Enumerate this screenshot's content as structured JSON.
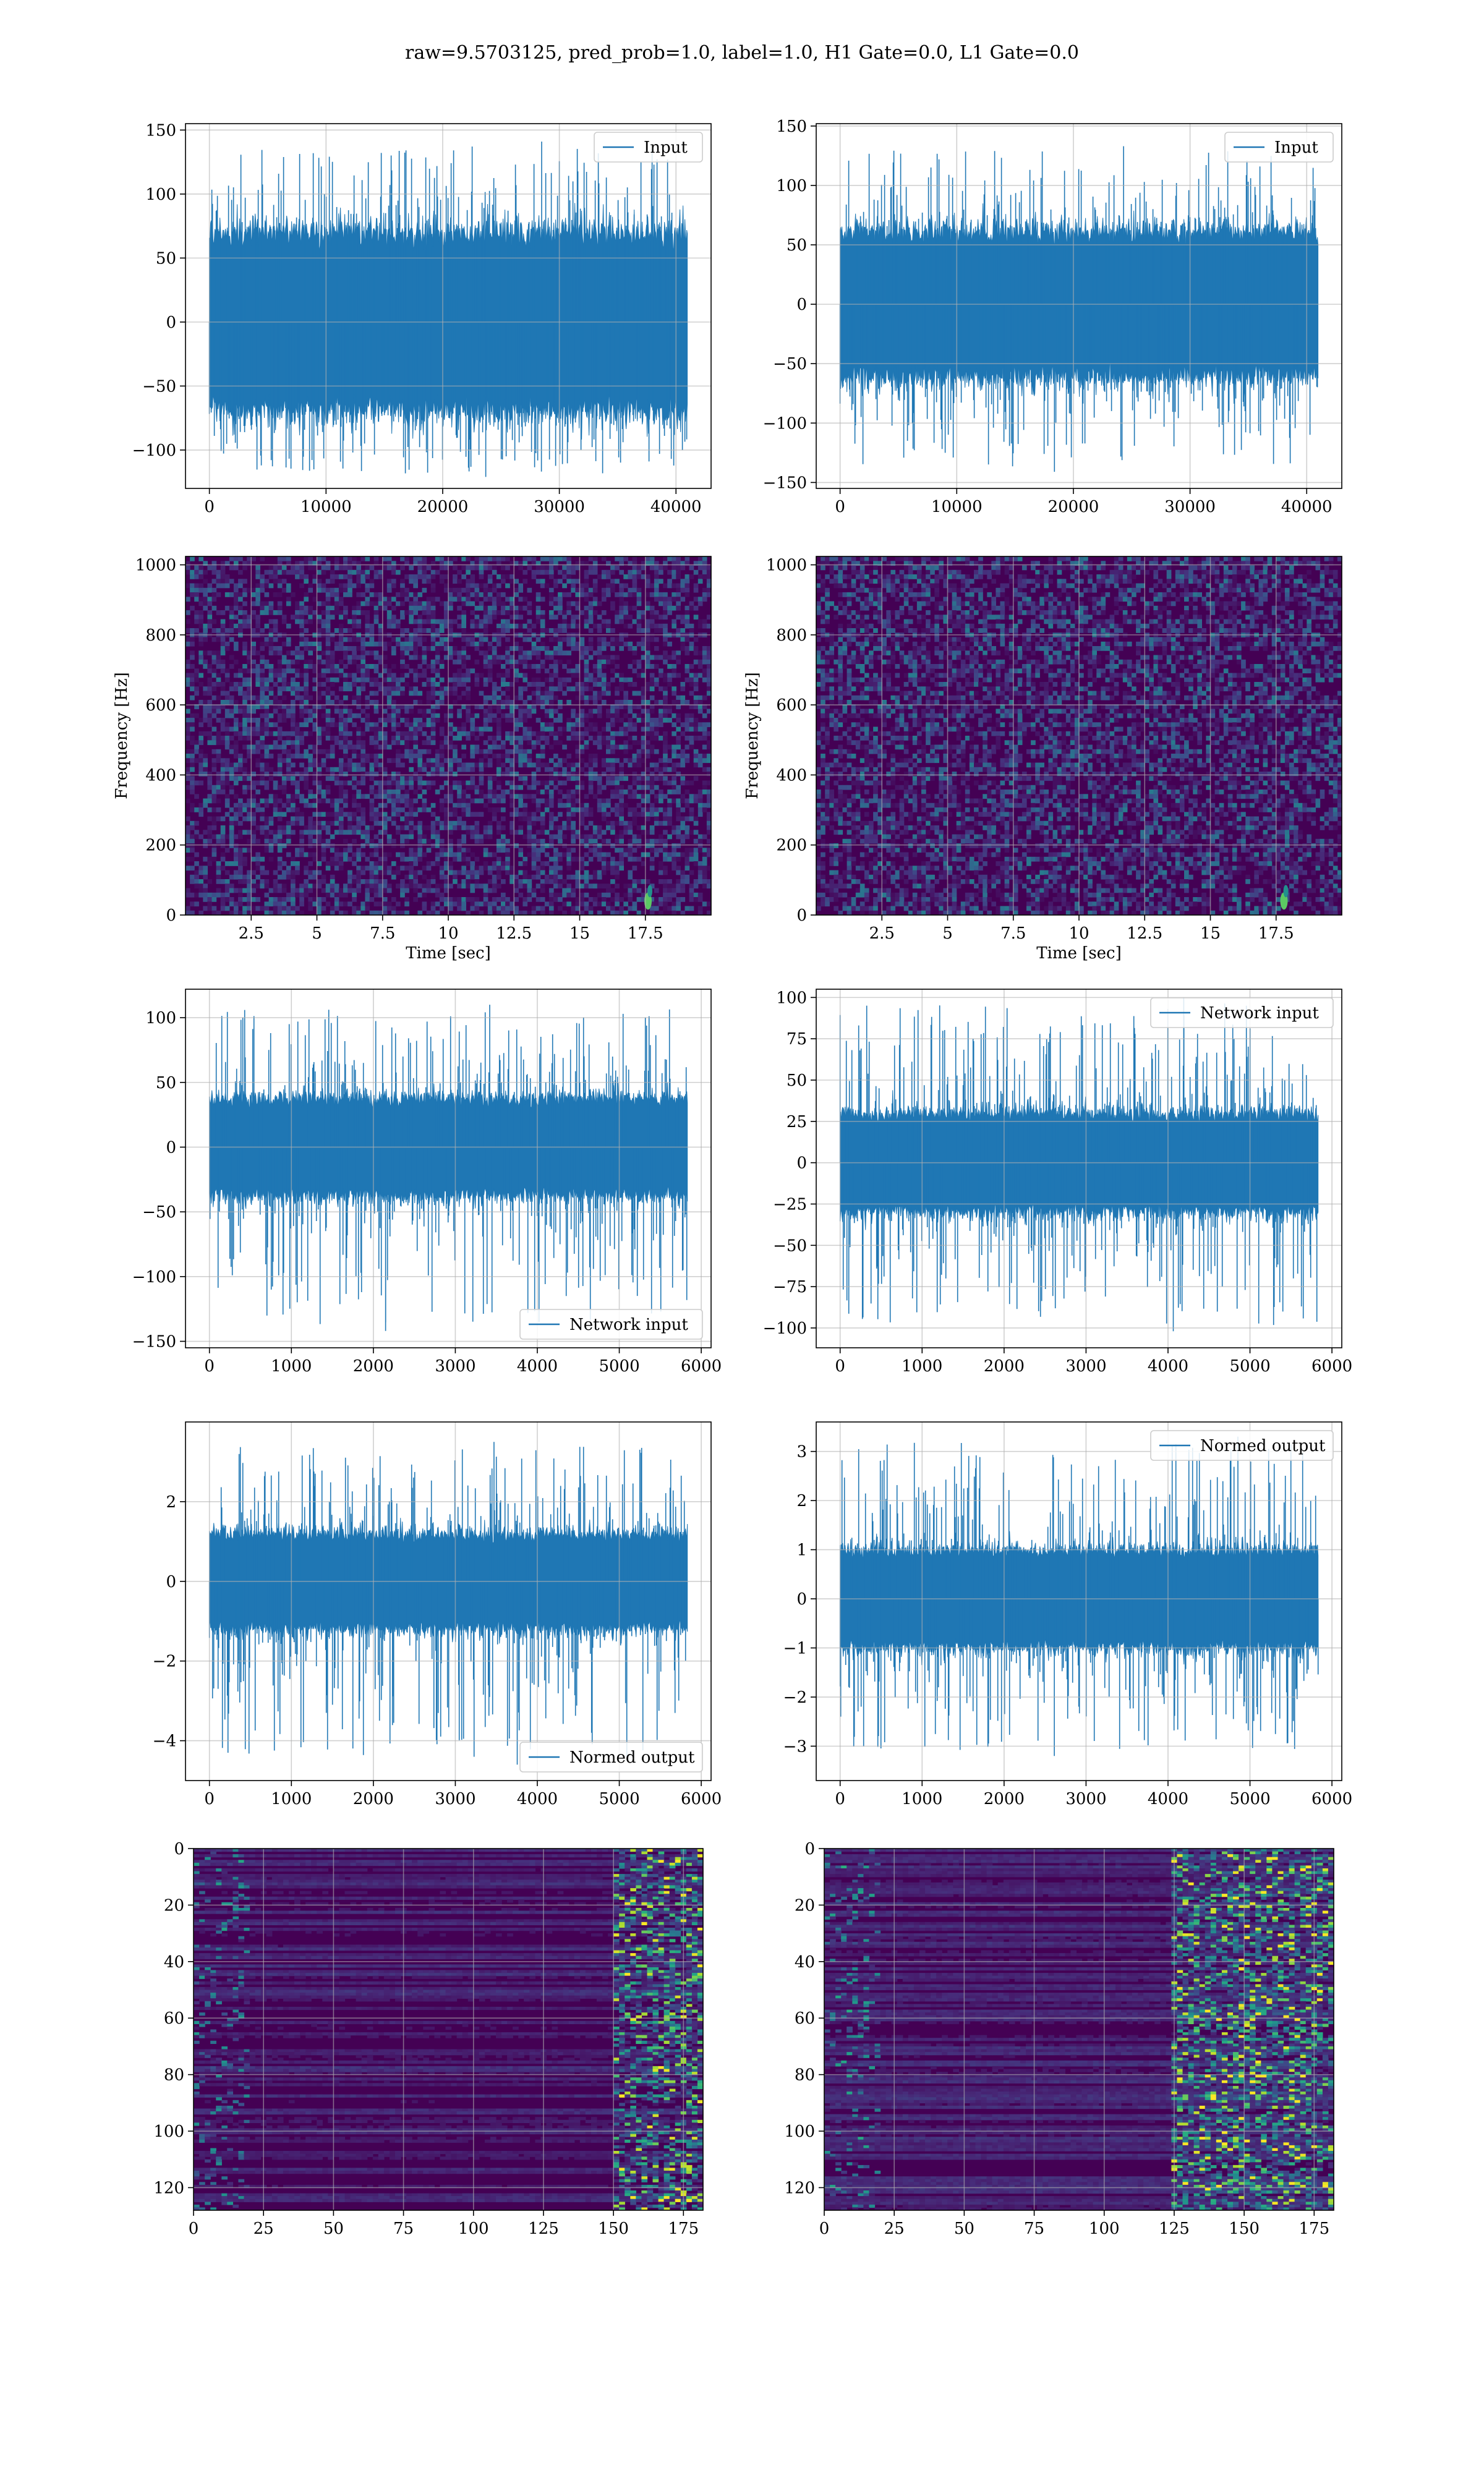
{
  "figure": {
    "title": "raw=9.5703125, pred_prob=1.0, label=1.0, H1 Gate=0.0, L1 Gate=0.0"
  },
  "colors": {
    "line": "#1f77b4",
    "grid": "#b0b0b0",
    "viridis_dark": "#440154",
    "viridis_mid": "#21918c",
    "viridis_bright": "#fde725"
  },
  "chart_data": [
    {
      "id": "p1",
      "type": "line",
      "title": "",
      "xlabel": "",
      "ylabel": "",
      "legend": "Input",
      "legend_loc": "upper right",
      "xlim": [
        -2048,
        43008
      ],
      "ylim": [
        -130,
        155
      ],
      "xticks": [
        0,
        10000,
        20000,
        30000,
        40000
      ],
      "yticks": [
        -100,
        -50,
        0,
        50,
        100,
        150
      ],
      "signal": {
        "n": 40960,
        "x_start": 0,
        "x_end": 40960,
        "core_amplitude": 70,
        "max": 141,
        "min": -121
      },
      "grid": true
    },
    {
      "id": "p2",
      "type": "line",
      "title": "",
      "xlabel": "",
      "ylabel": "",
      "legend": "Input",
      "legend_loc": "upper right",
      "xlim": [
        -2048,
        43008
      ],
      "ylim": [
        -155,
        152
      ],
      "xticks": [
        0,
        10000,
        20000,
        30000,
        40000
      ],
      "yticks": [
        -150,
        -100,
        -50,
        0,
        50,
        100,
        150
      ],
      "signal": {
        "n": 40960,
        "x_start": 0,
        "x_end": 40960,
        "core_amplitude": 62,
        "max": 133,
        "min": -141
      },
      "grid": true
    },
    {
      "id": "p3",
      "type": "heatmap",
      "title": "",
      "xlabel": "Time [sec]",
      "ylabel": "Frequency [Hz]",
      "xlim": [
        0,
        20
      ],
      "ylim": [
        0,
        1024
      ],
      "xticks": [
        2.5,
        5.0,
        7.5,
        10.0,
        12.5,
        15.0,
        17.5
      ],
      "yticks": [
        0,
        200,
        400,
        600,
        800,
        1000
      ],
      "colormap": "viridis",
      "hot_spot": {
        "time": 17.6,
        "freq": 40
      },
      "grid": true
    },
    {
      "id": "p4",
      "type": "heatmap",
      "title": "",
      "xlabel": "Time [sec]",
      "ylabel": "Frequency [Hz]",
      "xlim": [
        0,
        20
      ],
      "ylim": [
        0,
        1024
      ],
      "xticks": [
        2.5,
        5.0,
        7.5,
        10.0,
        12.5,
        15.0,
        17.5
      ],
      "yticks": [
        0,
        200,
        400,
        600,
        800,
        1000
      ],
      "colormap": "viridis",
      "hot_spot": {
        "time": 17.8,
        "freq": 40
      },
      "grid": true
    },
    {
      "id": "p5",
      "type": "line",
      "title": "",
      "xlabel": "",
      "ylabel": "",
      "legend": "Network input",
      "legend_loc": "lower right",
      "xlim": [
        -292,
        6120
      ],
      "ylim": [
        -155,
        122
      ],
      "xticks": [
        0,
        1000,
        2000,
        3000,
        4000,
        5000,
        6000
      ],
      "yticks": [
        -150,
        -100,
        -50,
        0,
        50,
        100
      ],
      "signal": {
        "n": 5832,
        "x_start": 0,
        "x_end": 5832,
        "core_amplitude": 38,
        "max": 110,
        "min": -142
      },
      "grid": true
    },
    {
      "id": "p6",
      "type": "line",
      "title": "",
      "xlabel": "",
      "ylabel": "",
      "legend": "Network input",
      "legend_loc": "upper right",
      "xlim": [
        -292,
        6120
      ],
      "ylim": [
        -112,
        105
      ],
      "xticks": [
        0,
        1000,
        2000,
        3000,
        4000,
        5000,
        6000
      ],
      "yticks": [
        -100,
        -75,
        -50,
        -25,
        0,
        25,
        50,
        75,
        100
      ],
      "signal": {
        "n": 5832,
        "x_start": 0,
        "x_end": 5832,
        "core_amplitude": 30,
        "max": 100,
        "min": -102
      },
      "grid": true
    },
    {
      "id": "p7",
      "type": "line",
      "title": "",
      "xlabel": "",
      "ylabel": "",
      "legend": "Normed output",
      "legend_loc": "lower right",
      "xlim": [
        -292,
        6120
      ],
      "ylim": [
        -5.0,
        4.0
      ],
      "xticks": [
        0,
        1000,
        2000,
        3000,
        4000,
        5000,
        6000
      ],
      "yticks": [
        -4,
        -2,
        0,
        2
      ],
      "signal": {
        "n": 5832,
        "x_start": 0,
        "x_end": 5832,
        "core_amplitude": 1.2,
        "max": 3.5,
        "min": -4.6
      },
      "grid": true
    },
    {
      "id": "p8",
      "type": "line",
      "title": "",
      "xlabel": "",
      "ylabel": "",
      "legend": "Normed output",
      "legend_loc": "upper right",
      "xlim": [
        -292,
        6120
      ],
      "ylim": [
        -3.7,
        3.6
      ],
      "xticks": [
        0,
        1000,
        2000,
        3000,
        4000,
        5000,
        6000
      ],
      "yticks": [
        -3,
        -2,
        -1,
        0,
        1,
        2,
        3
      ],
      "signal": {
        "n": 5832,
        "x_start": 0,
        "x_end": 5832,
        "core_amplitude": 1.0,
        "max": 3.3,
        "min": -3.2
      },
      "grid": true
    },
    {
      "id": "p9",
      "type": "heatmap",
      "title": "",
      "xlabel": "",
      "ylabel": "",
      "xlim": [
        0,
        182
      ],
      "ylim": [
        128,
        0
      ],
      "xticks": [
        0,
        25,
        50,
        75,
        100,
        125,
        150,
        175
      ],
      "yticks": [
        0,
        20,
        40,
        60,
        80,
        100,
        120
      ],
      "colormap": "viridis",
      "active_region": [
        150,
        182
      ],
      "grid": true
    },
    {
      "id": "p10",
      "type": "heatmap",
      "title": "",
      "xlabel": "",
      "ylabel": "",
      "xlim": [
        0,
        182
      ],
      "ylim": [
        128,
        0
      ],
      "xticks": [
        0,
        25,
        50,
        75,
        100,
        125,
        150,
        175
      ],
      "yticks": [
        0,
        20,
        40,
        60,
        80,
        100,
        120
      ],
      "colormap": "viridis",
      "active_region": [
        125,
        182
      ],
      "grid": true
    }
  ]
}
